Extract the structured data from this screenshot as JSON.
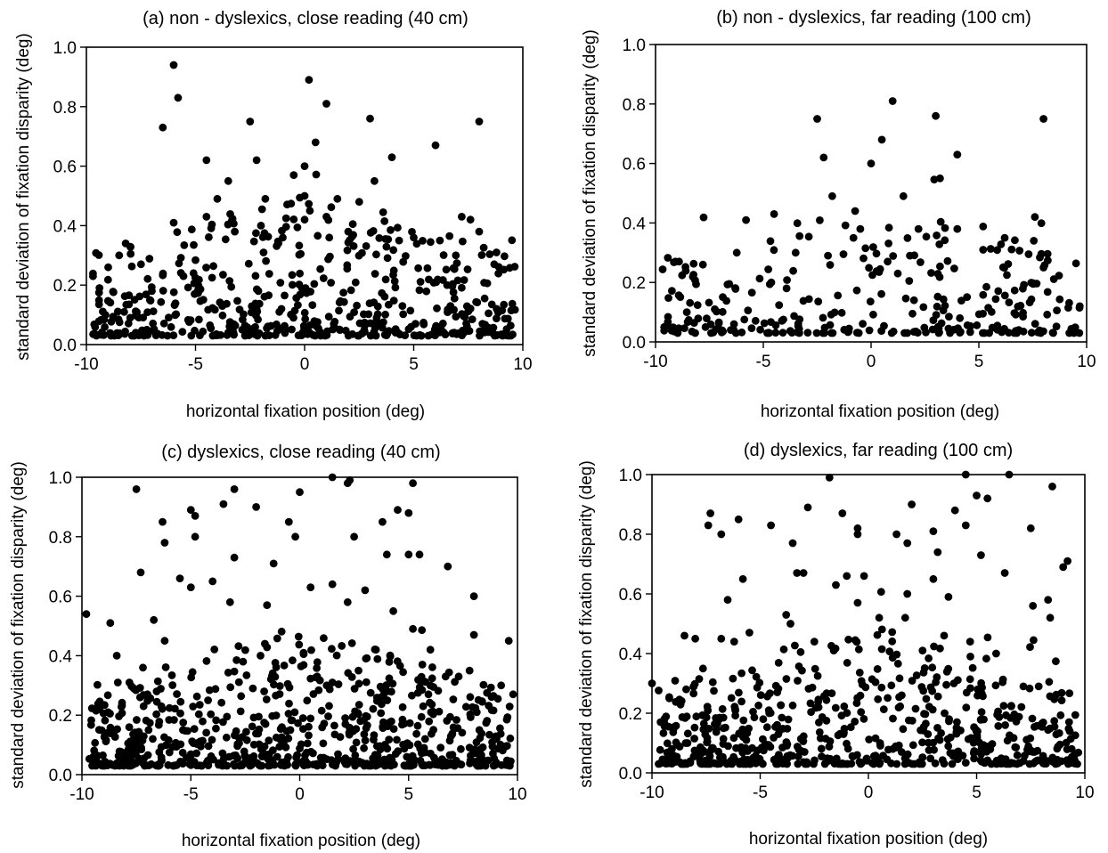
{
  "chart_data": [
    {
      "type": "scatter",
      "title": "(a) non - dyslexics, close reading (40 cm)",
      "xlabel": "horizontal fixation position (deg)",
      "ylabel": "standard deviation of fixation disparity (deg)",
      "xlim": [
        -10,
        10
      ],
      "ylim": [
        0.0,
        1.0
      ],
      "xticks": [
        "-10",
        "-5",
        "0",
        "5",
        "10"
      ],
      "yticks": [
        "0.0",
        "0.2",
        "0.4",
        "0.6",
        "0.8",
        "1.0"
      ],
      "grid": false,
      "marker_color": "#000000",
      "points": [
        [
          -6.0,
          0.94
        ],
        [
          -5.8,
          0.83
        ],
        [
          -6.5,
          0.73
        ],
        [
          0.2,
          0.89
        ],
        [
          1.0,
          0.81
        ],
        [
          -2.5,
          0.75
        ],
        [
          3.0,
          0.76
        ],
        [
          8.0,
          0.75
        ],
        [
          6.0,
          0.67
        ],
        [
          0.5,
          0.68
        ],
        [
          -2.2,
          0.62
        ],
        [
          -4.5,
          0.62
        ],
        [
          0.0,
          0.6
        ],
        [
          4.0,
          0.63
        ],
        [
          -3.5,
          0.55
        ],
        [
          -0.5,
          0.57
        ],
        [
          3.2,
          0.55
        ],
        [
          -4.0,
          0.49
        ],
        [
          -1.8,
          0.49
        ],
        [
          0.0,
          0.5
        ],
        [
          1.5,
          0.49
        ],
        [
          2.5,
          0.48
        ],
        [
          -6.0,
          0.41
        ],
        [
          -4.5,
          0.43
        ],
        [
          0.0,
          0.42
        ],
        [
          1.0,
          0.43
        ],
        [
          -2.0,
          0.4
        ],
        [
          7.2,
          0.43
        ],
        [
          7.6,
          0.42
        ],
        [
          8.0,
          0.38
        ],
        [
          -1.0,
          0.36
        ],
        [
          -3.2,
          0.38
        ],
        [
          2.0,
          0.38
        ],
        [
          5.0,
          0.36
        ],
        [
          6.2,
          0.35
        ],
        [
          -8.2,
          0.34
        ],
        [
          -9.7,
          0.23
        ],
        [
          -9.0,
          0.26
        ],
        [
          -7.5,
          0.27
        ],
        [
          -8.5,
          0.3
        ]
      ],
      "seed": 11,
      "n_bg": 520
    },
    {
      "type": "scatter",
      "title": "(b) non - dyslexics, far reading (100 cm)",
      "xlabel": "horizontal fixation position (deg)",
      "ylabel": "standard deviation of fixation disparity (deg)",
      "xlim": [
        -10,
        10
      ],
      "ylim": [
        0.0,
        1.0
      ],
      "xticks": [
        "-10",
        "-5",
        "0",
        "5",
        "10"
      ],
      "yticks": [
        "0.0",
        "0.2",
        "0.4",
        "0.6",
        "0.8",
        "1.0"
      ],
      "grid": false,
      "marker_color": "#000000",
      "points": [
        [
          1.0,
          0.81
        ],
        [
          3.0,
          0.76
        ],
        [
          8.0,
          0.75
        ],
        [
          -2.5,
          0.75
        ],
        [
          0.5,
          0.68
        ],
        [
          -2.2,
          0.62
        ],
        [
          0.0,
          0.6
        ],
        [
          4.0,
          0.63
        ],
        [
          3.2,
          0.55
        ],
        [
          -1.8,
          0.49
        ],
        [
          1.5,
          0.49
        ],
        [
          -4.5,
          0.43
        ],
        [
          -5.8,
          0.41
        ],
        [
          7.6,
          0.42
        ],
        [
          -0.5,
          0.38
        ],
        [
          4.0,
          0.38
        ],
        [
          2.2,
          0.38
        ],
        [
          6.2,
          0.35
        ],
        [
          -3.5,
          0.3
        ],
        [
          5.2,
          0.31
        ],
        [
          -9.6,
          0.05
        ],
        [
          -7.8,
          0.26
        ],
        [
          -2.0,
          0.29
        ],
        [
          1.8,
          0.29
        ],
        [
          8.0,
          0.25
        ]
      ],
      "seed": 23,
      "n_bg": 300
    },
    {
      "type": "scatter",
      "title": "(c) dyslexics, close reading (40 cm)",
      "xlabel": "horizontal fixation position (deg)",
      "ylabel": "standard deviation of fixation disparity (deg)",
      "xlim": [
        -10,
        10
      ],
      "ylim": [
        0.0,
        1.0
      ],
      "xticks": [
        "-10",
        "-5",
        "0",
        "5",
        "10"
      ],
      "yticks": [
        "0.0",
        "0.2",
        "0.4",
        "0.6",
        "0.8",
        "1.0"
      ],
      "grid": false,
      "marker_color": "#000000",
      "points": [
        [
          1.5,
          1.0
        ],
        [
          2.3,
          0.99
        ],
        [
          2.2,
          0.98
        ],
        [
          5.2,
          0.98
        ],
        [
          -7.5,
          0.96
        ],
        [
          -3.0,
          0.96
        ],
        [
          0.0,
          0.95
        ],
        [
          -3.5,
          0.91
        ],
        [
          -2.0,
          0.9
        ],
        [
          -5.0,
          0.89
        ],
        [
          -4.8,
          0.87
        ],
        [
          4.5,
          0.89
        ],
        [
          5.0,
          0.88
        ],
        [
          -6.3,
          0.85
        ],
        [
          -0.5,
          0.85
        ],
        [
          3.8,
          0.85
        ],
        [
          -6.2,
          0.78
        ],
        [
          -4.8,
          0.8
        ],
        [
          -0.2,
          0.8
        ],
        [
          2.5,
          0.8
        ],
        [
          -3.0,
          0.73
        ],
        [
          -1.2,
          0.71
        ],
        [
          4.0,
          0.74
        ],
        [
          5.0,
          0.74
        ],
        [
          5.5,
          0.74
        ],
        [
          6.8,
          0.7
        ],
        [
          -7.3,
          0.68
        ],
        [
          -5.5,
          0.66
        ],
        [
          -4.0,
          0.65
        ],
        [
          0.5,
          0.63
        ],
        [
          1.5,
          0.64
        ],
        [
          3.0,
          0.62
        ],
        [
          -9.8,
          0.54
        ],
        [
          -8.7,
          0.51
        ],
        [
          -6.7,
          0.52
        ],
        [
          -5.0,
          0.63
        ],
        [
          2.2,
          0.58
        ],
        [
          8.0,
          0.6
        ],
        [
          8.0,
          0.47
        ],
        [
          9.6,
          0.45
        ],
        [
          9.8,
          0.27
        ],
        [
          -8.4,
          0.4
        ],
        [
          -7.2,
          0.36
        ],
        [
          -6.2,
          0.45
        ],
        [
          -3.2,
          0.58
        ],
        [
          -1.5,
          0.57
        ],
        [
          3.5,
          0.42
        ],
        [
          4.3,
          0.55
        ],
        [
          5.2,
          0.49
        ],
        [
          6.0,
          0.42
        ],
        [
          -2.6,
          0.38
        ],
        [
          -1.8,
          0.4
        ],
        [
          0.8,
          0.33
        ],
        [
          2.7,
          0.35
        ],
        [
          6.7,
          0.33
        ],
        [
          7.3,
          0.33
        ],
        [
          7.8,
          0.35
        ],
        [
          -9.2,
          0.22
        ],
        [
          -8.8,
          0.21
        ],
        [
          6.0,
          0.3
        ]
      ],
      "seed": 37,
      "n_bg": 720
    },
    {
      "type": "scatter",
      "title": "(d) dyslexics, far reading (100 cm)",
      "xlabel": "horizontal fixation position (deg)",
      "ylabel": "standard deviation of fixation disparity (deg)",
      "xlim": [
        -10,
        10
      ],
      "ylim": [
        0.0,
        1.0
      ],
      "xticks": [
        "-10",
        "-5",
        "0",
        "5",
        "10"
      ],
      "yticks": [
        "0.0",
        "0.2",
        "0.4",
        "0.6",
        "0.8",
        "1.0"
      ],
      "grid": false,
      "marker_color": "#000000",
      "points": [
        [
          4.5,
          1.0
        ],
        [
          6.5,
          1.0
        ],
        [
          -1.8,
          0.99
        ],
        [
          8.5,
          0.96
        ],
        [
          5.0,
          0.93
        ],
        [
          5.5,
          0.92
        ],
        [
          -2.8,
          0.89
        ],
        [
          2.0,
          0.9
        ],
        [
          -1.2,
          0.87
        ],
        [
          4.0,
          0.88
        ],
        [
          -7.3,
          0.87
        ],
        [
          -7.4,
          0.83
        ],
        [
          -6.0,
          0.85
        ],
        [
          -4.5,
          0.83
        ],
        [
          -0.5,
          0.82
        ],
        [
          -0.5,
          0.8
        ],
        [
          4.5,
          0.83
        ],
        [
          3.0,
          0.81
        ],
        [
          1.3,
          0.8
        ],
        [
          7.5,
          0.82
        ],
        [
          -6.8,
          0.8
        ],
        [
          -3.5,
          0.77
        ],
        [
          1.8,
          0.77
        ],
        [
          3.2,
          0.74
        ],
        [
          5.2,
          0.73
        ],
        [
          9.2,
          0.71
        ],
        [
          9.0,
          0.69
        ],
        [
          -5.8,
          0.65
        ],
        [
          -3.3,
          0.67
        ],
        [
          -3.0,
          0.67
        ],
        [
          -1.0,
          0.66
        ],
        [
          -0.2,
          0.66
        ],
        [
          6.3,
          0.67
        ],
        [
          -6.5,
          0.58
        ],
        [
          -1.5,
          0.63
        ],
        [
          3.0,
          0.65
        ],
        [
          3.7,
          0.59
        ],
        [
          -0.5,
          0.57
        ],
        [
          1.8,
          0.6
        ],
        [
          8.3,
          0.58
        ],
        [
          8.4,
          0.52
        ],
        [
          7.6,
          0.56
        ],
        [
          -8.5,
          0.46
        ],
        [
          -8.0,
          0.45
        ],
        [
          -6.8,
          0.45
        ],
        [
          -6.2,
          0.44
        ],
        [
          -5.5,
          0.47
        ],
        [
          -3.8,
          0.53
        ],
        [
          -3.6,
          0.5
        ],
        [
          -2.5,
          0.44
        ],
        [
          -1.6,
          0.41
        ],
        [
          0.5,
          0.52
        ],
        [
          1.7,
          0.52
        ],
        [
          2.5,
          0.41
        ],
        [
          3.5,
          0.46
        ],
        [
          4.7,
          0.44
        ],
        [
          5.9,
          0.4
        ],
        [
          -10.0,
          0.3
        ],
        [
          -9.6,
          0.17
        ],
        [
          -9.2,
          0.25
        ]
      ],
      "seed": 59,
      "n_bg": 640
    }
  ]
}
